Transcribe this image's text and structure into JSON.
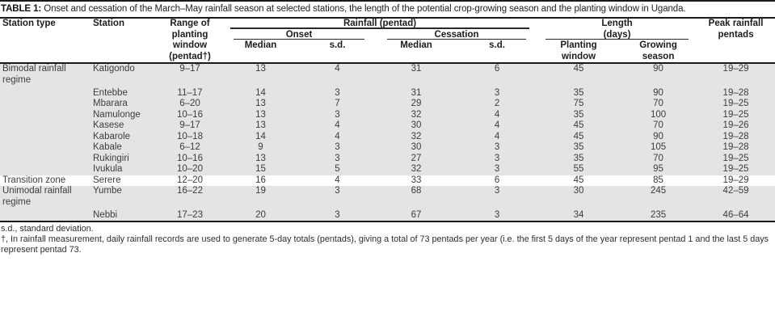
{
  "title": {
    "label": "TABLE 1:",
    "text": "Onset and cessation of the March–May rainfall season at selected stations, the length of the potential crop-growing season and the planting window in Uganda."
  },
  "columns": {
    "station_type": "Station type",
    "station": "Station",
    "range_of_planting_window": "Range of\nplanting\nwindow\n(pentad†)",
    "rainfall_pentad": "Rainfall (pentad)",
    "onset": "Onset",
    "cessation": "Cessation",
    "onset_median": "Median",
    "onset_sd": "s.d.",
    "cessation_median": "Median",
    "cessation_sd": "s.d.",
    "length_days": "Length\n(days)",
    "planting_window": "Planting\nwindow",
    "growing_season": "Growing\nseason",
    "peak_rainfall_pentads": "Peak rainfall\npentads"
  },
  "groups": [
    {
      "station_type": "Bimodal rainfall regime",
      "shaded": true,
      "rows": [
        {
          "station": "Katigondo",
          "range": "9–17",
          "onset_median": "13",
          "onset_sd": "4",
          "cessation_median": "31",
          "cessation_sd": "6",
          "planting_window": "45",
          "growing_season": "90",
          "peak": "19–29"
        },
        {
          "station": "Entebbe",
          "range": "11–17",
          "onset_median": "14",
          "onset_sd": "3",
          "cessation_median": "31",
          "cessation_sd": "3",
          "planting_window": "35",
          "growing_season": "90",
          "peak": "19–28"
        },
        {
          "station": "Mbarara",
          "range": "6–20",
          "onset_median": "13",
          "onset_sd": "7",
          "cessation_median": "29",
          "cessation_sd": "2",
          "planting_window": "75",
          "growing_season": "70",
          "peak": "19–25"
        },
        {
          "station": "Namulonge",
          "range": "10–16",
          "onset_median": "13",
          "onset_sd": "3",
          "cessation_median": "32",
          "cessation_sd": "4",
          "planting_window": "35",
          "growing_season": "100",
          "peak": "19–25"
        },
        {
          "station": "Kasese",
          "range": "9–17",
          "onset_median": "13",
          "onset_sd": "4",
          "cessation_median": "30",
          "cessation_sd": "4",
          "planting_window": "45",
          "growing_season": "70",
          "peak": "19–26"
        },
        {
          "station": "Kabarole",
          "range": "10–18",
          "onset_median": "14",
          "onset_sd": "4",
          "cessation_median": "32",
          "cessation_sd": "4",
          "planting_window": "45",
          "growing_season": "90",
          "peak": "19–28"
        },
        {
          "station": "Kabale",
          "range": "6–12",
          "onset_median": "9",
          "onset_sd": "3",
          "cessation_median": "30",
          "cessation_sd": "3",
          "planting_window": "35",
          "growing_season": "105",
          "peak": "19–28"
        },
        {
          "station": "Rukingiri",
          "range": "10–16",
          "onset_median": "13",
          "onset_sd": "3",
          "cessation_median": "27",
          "cessation_sd": "3",
          "planting_window": "35",
          "growing_season": "70",
          "peak": "19–25"
        },
        {
          "station": "Ivukula",
          "range": "10–20",
          "onset_median": "15",
          "onset_sd": "5",
          "cessation_median": "32",
          "cessation_sd": "3",
          "planting_window": "55",
          "growing_season": "95",
          "peak": "19–25"
        }
      ]
    },
    {
      "station_type": "Transition zone",
      "shaded": false,
      "rows": [
        {
          "station": "Serere",
          "range": "12–20",
          "onset_median": "16",
          "onset_sd": "4",
          "cessation_median": "33",
          "cessation_sd": "6",
          "planting_window": "45",
          "growing_season": "85",
          "peak": "19–29"
        }
      ]
    },
    {
      "station_type": "Unimodal rainfall regime",
      "shaded": true,
      "rows": [
        {
          "station": "Yumbe",
          "range": "16–22",
          "onset_median": "19",
          "onset_sd": "3",
          "cessation_median": "68",
          "cessation_sd": "3",
          "planting_window": "30",
          "growing_season": "245",
          "peak": "42–59"
        },
        {
          "station": "Nebbi",
          "range": "17–23",
          "onset_median": "20",
          "onset_sd": "3",
          "cessation_median": "67",
          "cessation_sd": "3",
          "planting_window": "34",
          "growing_season": "235",
          "peak": "46–64"
        }
      ]
    }
  ],
  "footnotes": {
    "sd_note": "s.d., standard deviation.",
    "dagger_note": "†, In rainfall measurement, daily rainfall records are used to generate 5-day totals (pentads), giving a total of 73 pentads per year (i.e. the first 5 days of the year represent pentad 1 and the last 5 days represent pentad 73."
  },
  "colors": {
    "shaded_row": "#e4e4e4",
    "rule_dark": "#1a1a1a",
    "body_text": "#3d3d3d"
  }
}
